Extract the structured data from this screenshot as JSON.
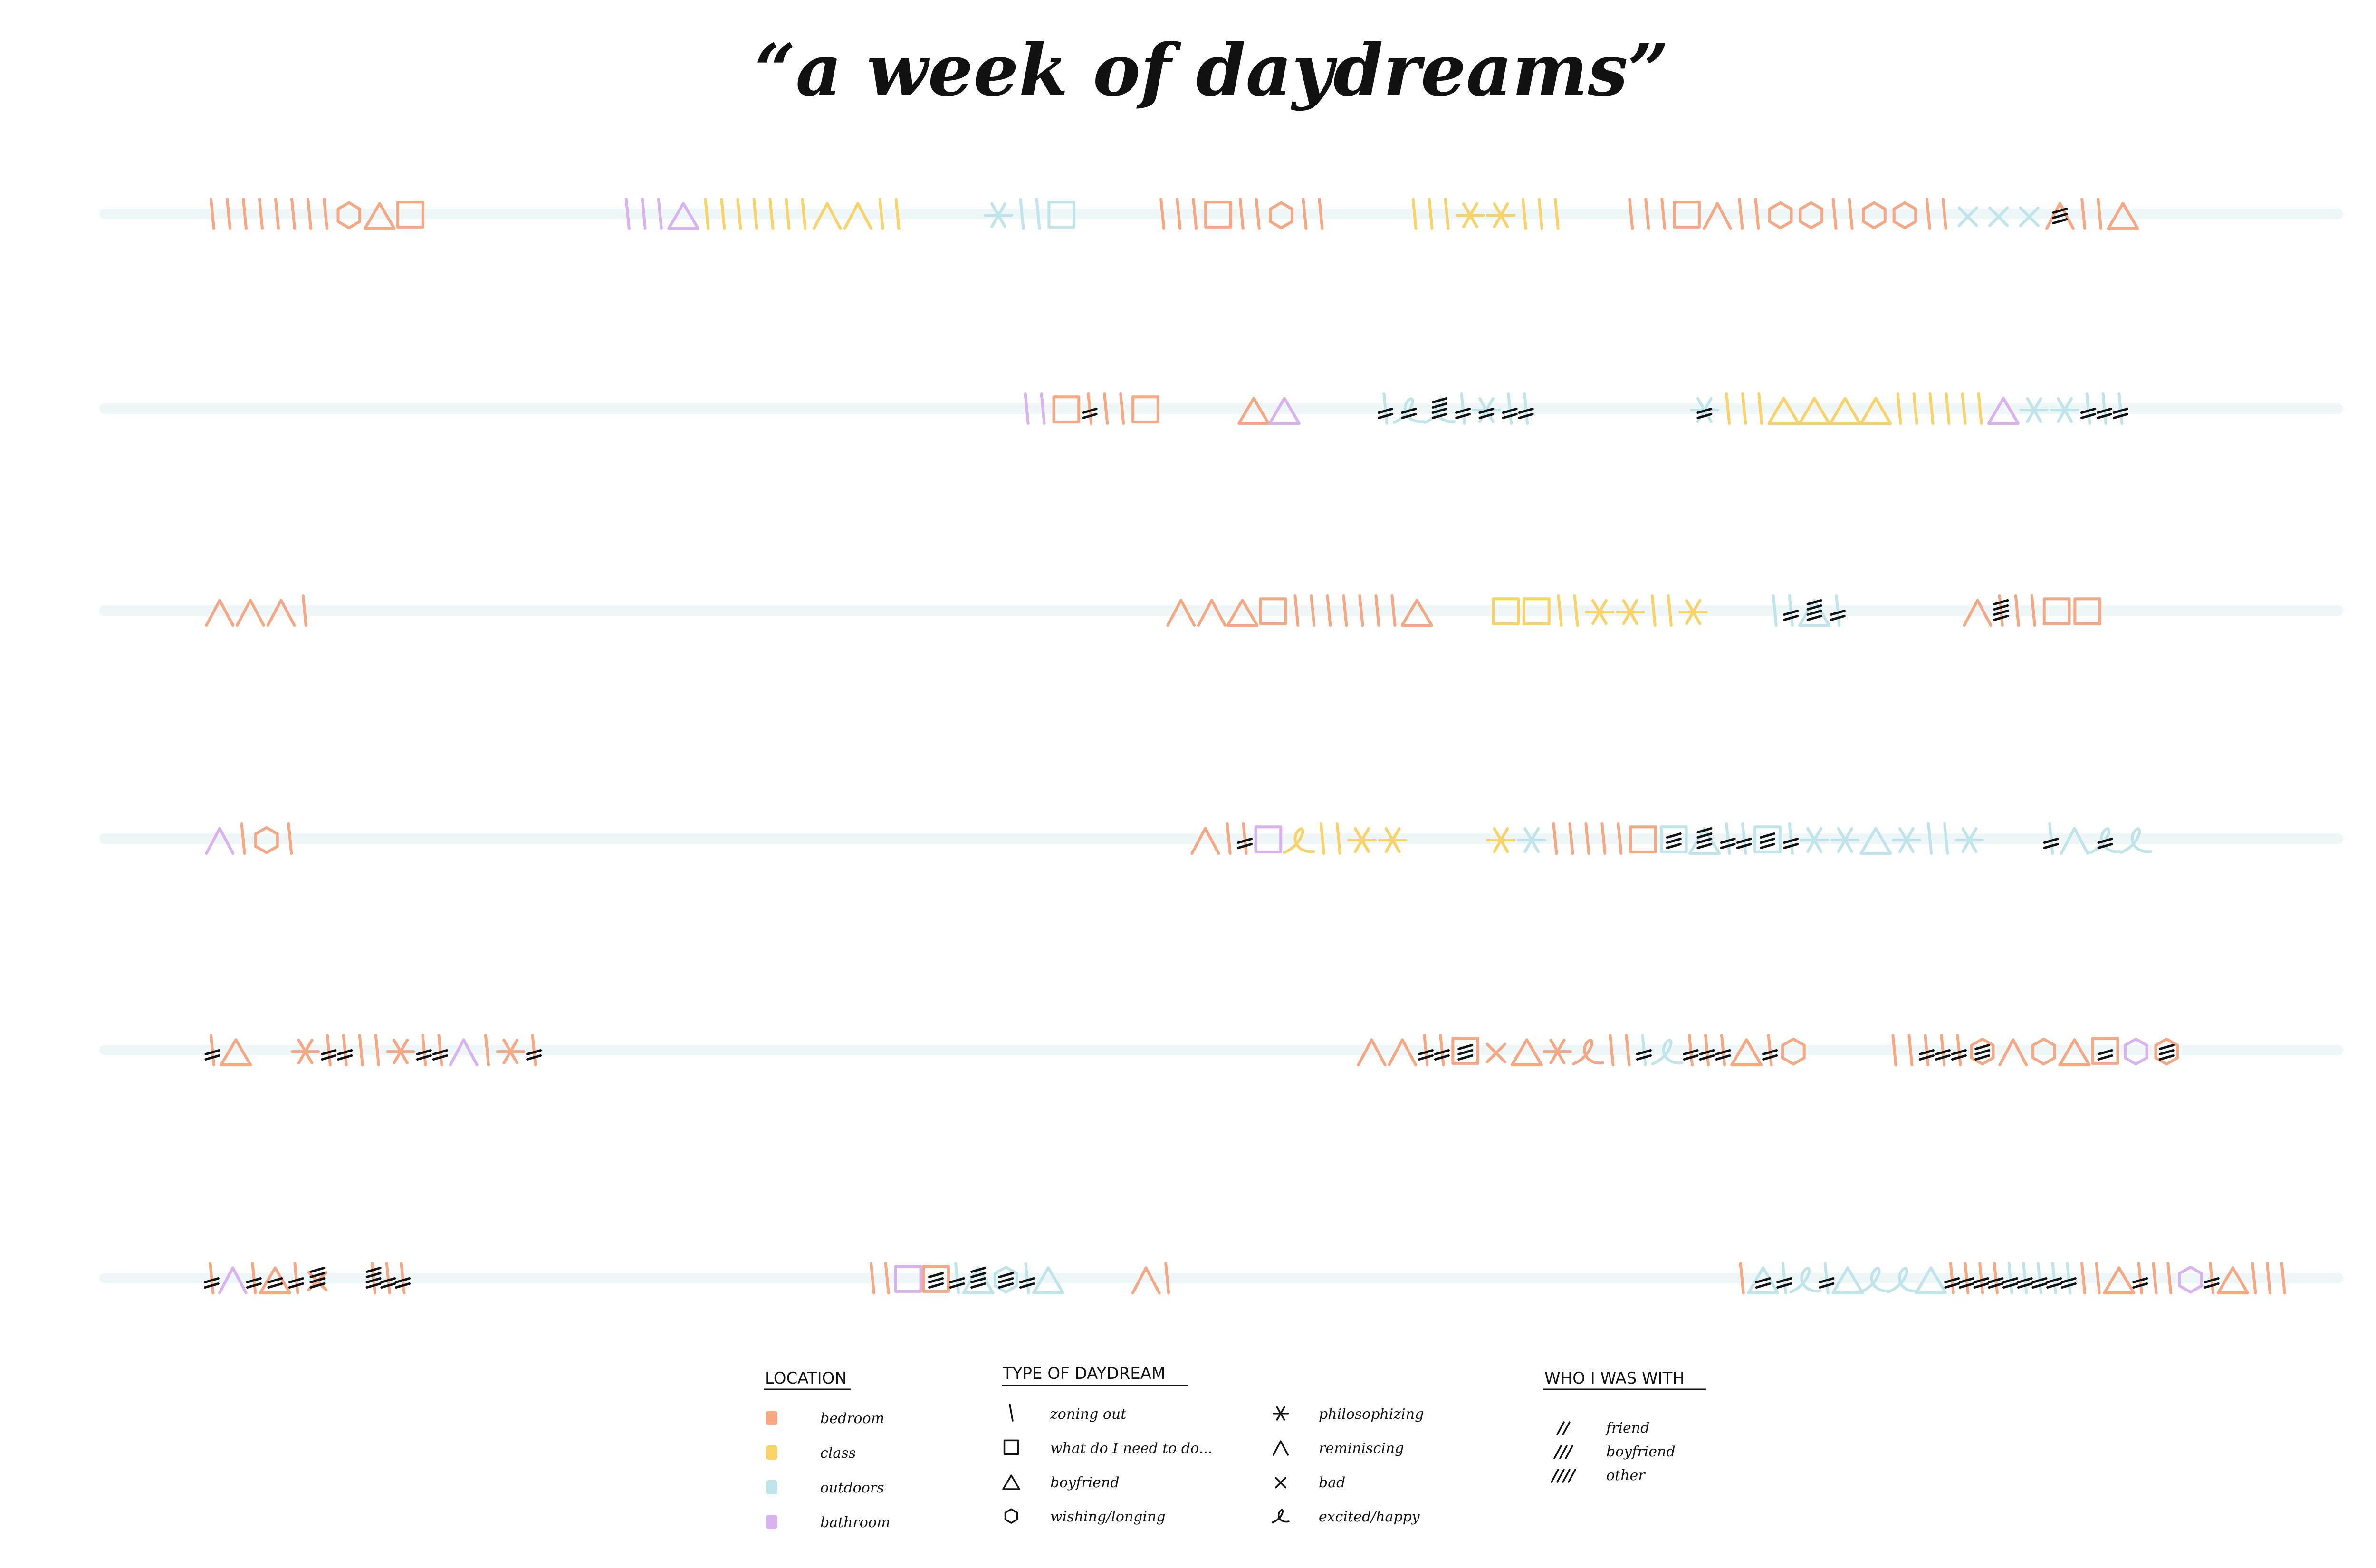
{
  "title": "“a week of daydreams”",
  "colors": {
    "bedroom": "#f6a783",
    "class": "#f8d36a",
    "outdoors": "#bfe5ea",
    "bathroom": "#d9b2f0",
    "ink": "#111111",
    "track": "#eef6f8"
  },
  "days": [
    {
      "row": 1,
      "marks": [
        {
          "t": "zone",
          "c": "bedroom",
          "n": 8
        },
        {
          "t": "wish",
          "c": "bedroom"
        },
        {
          "t": "boy",
          "c": "bedroom"
        },
        {
          "t": "todo",
          "c": "bedroom"
        },
        {
          "gap": 1
        },
        {
          "t": "zone",
          "c": "bathroom",
          "n": 3
        },
        {
          "t": "boy",
          "c": "bathroom"
        },
        {
          "t": "zone",
          "c": "class",
          "n": 7
        },
        {
          "t": "rem",
          "c": "class",
          "n": 2
        },
        {
          "t": "zone",
          "c": "class",
          "n": 2
        },
        {
          "gap": 0.4
        },
        {
          "t": "phil",
          "c": "outdoors"
        },
        {
          "t": "zone",
          "c": "outdoors",
          "n": 2
        },
        {
          "t": "todo",
          "c": "outdoors"
        },
        {
          "gap": 0.4
        },
        {
          "t": "zone",
          "c": "bedroom",
          "n": 3
        },
        {
          "t": "todo",
          "c": "bedroom"
        },
        {
          "t": "zone",
          "c": "bedroom",
          "n": 2
        },
        {
          "t": "wish",
          "c": "bedroom"
        },
        {
          "t": "zone",
          "c": "bedroom",
          "n": 2
        },
        {
          "gap": 0.4
        },
        {
          "t": "zone",
          "c": "class",
          "n": 3
        },
        {
          "t": "phil",
          "c": "class",
          "n": 2
        },
        {
          "t": "zone",
          "c": "class",
          "n": 3
        },
        {
          "gap": 0.3
        },
        {
          "t": "zone",
          "c": "bedroom",
          "n": 3
        },
        {
          "t": "todo",
          "c": "bedroom"
        },
        {
          "t": "rem",
          "c": "bedroom"
        },
        {
          "t": "zone",
          "c": "bedroom",
          "n": 2
        },
        {
          "t": "wish",
          "c": "bedroom",
          "n": 2
        },
        {
          "t": "zone",
          "c": "bedroom",
          "n": 2
        },
        {
          "t": "wish",
          "c": "bedroom",
          "n": 2
        },
        {
          "t": "zone",
          "c": "bedroom",
          "n": 2
        },
        {
          "t": "bad",
          "c": "outdoors",
          "n": 3
        },
        {
          "t": "rem",
          "c": "bedroom",
          "w": "boyfriend"
        },
        {
          "t": "zone",
          "c": "bedroom",
          "n": 2
        },
        {
          "t": "boy",
          "c": "bedroom"
        }
      ]
    },
    {
      "row": 2,
      "marks": [
        {
          "gap": 4.2
        },
        {
          "t": "zone",
          "c": "bathroom",
          "n": 2
        },
        {
          "t": "todo",
          "c": "bedroom"
        },
        {
          "t": "zone",
          "c": "bedroom",
          "w": "friend"
        },
        {
          "t": "zone",
          "c": "bedroom",
          "n": 2
        },
        {
          "t": "todo",
          "c": "bedroom"
        },
        {
          "gap": 0.4
        },
        {
          "t": "boy",
          "c": "bedroom"
        },
        {
          "t": "boy",
          "c": "bathroom"
        },
        {
          "gap": 0.4
        },
        {
          "t": "zone",
          "c": "outdoors",
          "w": "friend"
        },
        {
          "t": "happy",
          "c": "outdoors",
          "w": "friend"
        },
        {
          "t": "happy",
          "c": "outdoors",
          "w": "other"
        },
        {
          "t": "zone",
          "c": "outdoors",
          "w": "friend"
        },
        {
          "t": "phil",
          "c": "outdoors",
          "w": "friend"
        },
        {
          "t": "zone",
          "c": "outdoors",
          "w": "friend"
        },
        {
          "t": "zone",
          "c": "outdoors",
          "w": "friend"
        },
        {
          "gap": 0.8
        },
        {
          "t": "phil",
          "c": "outdoors",
          "w": "friend"
        },
        {
          "t": "zone",
          "c": "class",
          "n": 3
        },
        {
          "t": "boy",
          "c": "class",
          "n": 4
        },
        {
          "t": "zone",
          "c": "class",
          "n": 6
        },
        {
          "t": "boy",
          "c": "bathroom"
        },
        {
          "t": "phil",
          "c": "outdoors",
          "n": 2
        },
        {
          "t": "zone",
          "c": "outdoors",
          "w": "friend",
          "n": 3
        }
      ]
    },
    {
      "row": 3,
      "marks": [
        {
          "t": "rem",
          "c": "bedroom",
          "n": 3
        },
        {
          "t": "zone",
          "c": "bedroom"
        },
        {
          "gap": 4.4
        },
        {
          "t": "rem",
          "c": "bedroom",
          "n": 2
        },
        {
          "t": "boy",
          "c": "bedroom"
        },
        {
          "t": "todo",
          "c": "bedroom"
        },
        {
          "t": "zone",
          "c": "bedroom",
          "n": 7
        },
        {
          "t": "boy",
          "c": "bedroom"
        },
        {
          "gap": 0.3
        },
        {
          "t": "todo",
          "c": "class",
          "n": 2
        },
        {
          "t": "zone",
          "c": "class",
          "n": 2
        },
        {
          "t": "phil",
          "c": "class",
          "n": 2
        },
        {
          "t": "zone",
          "c": "class",
          "n": 2
        },
        {
          "t": "phil",
          "c": "class"
        },
        {
          "gap": 0.3
        },
        {
          "t": "zone",
          "c": "outdoors"
        },
        {
          "t": "zone",
          "c": "outdoors",
          "w": "friend"
        },
        {
          "t": "boy",
          "c": "outdoors",
          "w": "other"
        },
        {
          "t": "zone",
          "c": "outdoors",
          "w": "friend"
        },
        {
          "gap": 0.6
        },
        {
          "t": "rem",
          "c": "bedroom"
        },
        {
          "t": "zone",
          "c": "bedroom",
          "w": "other"
        },
        {
          "t": "zone",
          "c": "bedroom",
          "n": 2
        },
        {
          "t": "todo",
          "c": "bedroom",
          "n": 2
        }
      ]
    },
    {
      "row": 4,
      "marks": [
        {
          "t": "rem",
          "c": "bathroom"
        },
        {
          "t": "zone",
          "c": "bedroom"
        },
        {
          "t": "wish",
          "c": "bedroom"
        },
        {
          "t": "zone",
          "c": "bedroom"
        },
        {
          "gap": 4.6
        },
        {
          "t": "rem",
          "c": "bedroom"
        },
        {
          "t": "zone",
          "c": "bedroom"
        },
        {
          "t": "zone",
          "c": "bedroom",
          "w": "friend"
        },
        {
          "t": "todo",
          "c": "bathroom"
        },
        {
          "t": "happy",
          "c": "class"
        },
        {
          "t": "zone",
          "c": "class",
          "n": 2
        },
        {
          "t": "phil",
          "c": "class",
          "n": 2
        },
        {
          "gap": 0.4
        },
        {
          "t": "phil",
          "c": "class"
        },
        {
          "t": "phil",
          "c": "outdoors"
        },
        {
          "t": "zone",
          "c": "bedroom",
          "n": 5
        },
        {
          "t": "todo",
          "c": "bedroom"
        },
        {
          "t": "todo",
          "c": "outdoors",
          "w": "boyfriend"
        },
        {
          "t": "boy",
          "c": "outdoors",
          "w": "other"
        },
        {
          "t": "zone",
          "c": "outdoors",
          "w": "friend",
          "n": 2
        },
        {
          "t": "todo",
          "c": "outdoors",
          "w": "boyfriend"
        },
        {
          "t": "zone",
          "c": "outdoors",
          "w": "friend"
        },
        {
          "t": "phil",
          "c": "outdoors",
          "n": 2
        },
        {
          "t": "boy",
          "c": "outdoors"
        },
        {
          "t": "phil",
          "c": "outdoors"
        },
        {
          "t": "zone",
          "c": "outdoors",
          "n": 2
        },
        {
          "t": "phil",
          "c": "outdoors"
        },
        {
          "gap": 0.3
        },
        {
          "t": "zone",
          "c": "outdoors",
          "w": "friend"
        },
        {
          "t": "rem",
          "c": "outdoors"
        },
        {
          "t": "happy",
          "c": "outdoors",
          "w": "friend"
        },
        {
          "t": "happy",
          "c": "outdoors"
        }
      ]
    },
    {
      "row": 5,
      "marks": [
        {
          "t": "zone",
          "c": "bedroom",
          "w": "friend"
        },
        {
          "t": "boy",
          "c": "bedroom"
        },
        {
          "gap": 0.2
        },
        {
          "t": "phil",
          "c": "bedroom"
        },
        {
          "t": "zone",
          "c": "bedroom",
          "w": "friend",
          "n": 2
        },
        {
          "t": "zone",
          "c": "bedroom",
          "n": 2
        },
        {
          "t": "phil",
          "c": "bedroom"
        },
        {
          "t": "zone",
          "c": "bedroom",
          "w": "friend",
          "n": 2
        },
        {
          "t": "rem",
          "c": "bathroom"
        },
        {
          "t": "zone",
          "c": "bedroom"
        },
        {
          "t": "phil",
          "c": "bedroom"
        },
        {
          "t": "zone",
          "c": "bedroom",
          "w": "friend"
        },
        {
          "gap": 4.2
        },
        {
          "t": "rem",
          "c": "bedroom",
          "n": 2
        },
        {
          "t": "zone",
          "c": "bedroom",
          "w": "friend",
          "n": 2
        },
        {
          "t": "todo",
          "c": "bedroom",
          "w": "boyfriend"
        },
        {
          "t": "bad",
          "c": "bedroom"
        },
        {
          "t": "boy",
          "c": "bedroom"
        },
        {
          "t": "phil",
          "c": "bedroom"
        },
        {
          "t": "happy",
          "c": "bedroom"
        },
        {
          "t": "zone",
          "c": "bedroom",
          "n": 2
        },
        {
          "t": "zone",
          "c": "outdoors",
          "w": "friend"
        },
        {
          "t": "happy",
          "c": "outdoors"
        },
        {
          "t": "zone",
          "c": "bedroom",
          "w": "friend",
          "n": 3
        },
        {
          "t": "boy",
          "c": "bedroom"
        },
        {
          "t": "zone",
          "c": "bedroom",
          "w": "friend"
        },
        {
          "t": "wish",
          "c": "bedroom"
        },
        {
          "gap": 0.4
        },
        {
          "t": "zone",
          "c": "bedroom",
          "n": 2
        },
        {
          "t": "zone",
          "c": "bedroom",
          "w": "friend",
          "n": 3
        },
        {
          "t": "wish",
          "c": "bedroom",
          "w": "boyfriend"
        },
        {
          "t": "rem",
          "c": "bedroom"
        },
        {
          "t": "wish",
          "c": "bedroom"
        },
        {
          "t": "boy",
          "c": "bedroom"
        },
        {
          "t": "todo",
          "c": "bedroom",
          "w": "friend"
        },
        {
          "t": "wish",
          "c": "bathroom"
        },
        {
          "t": "wish",
          "c": "bedroom",
          "w": "boyfriend"
        }
      ]
    },
    {
      "row": 6,
      "marks": [
        {
          "t": "zone",
          "c": "bedroom",
          "w": "friend"
        },
        {
          "t": "rem",
          "c": "bathroom"
        },
        {
          "t": "zone",
          "c": "bedroom",
          "w": "friend"
        },
        {
          "t": "boy",
          "c": "bedroom",
          "w": "friend"
        },
        {
          "t": "zone",
          "c": "bedroom",
          "w": "friend"
        },
        {
          "t": "bad",
          "c": "bedroom",
          "w": "other"
        },
        {
          "gap": 0.2
        },
        {
          "t": "zone",
          "c": "bedroom",
          "w": "other"
        },
        {
          "t": "zone",
          "c": "bedroom",
          "w": "friend",
          "n": 2
        },
        {
          "gap": 2.6
        },
        {
          "t": "zone",
          "c": "bedroom",
          "n": 2
        },
        {
          "t": "todo",
          "c": "bathroom"
        },
        {
          "t": "todo",
          "c": "bedroom",
          "w": "boyfriend"
        },
        {
          "t": "zone",
          "c": "outdoors",
          "w": "friend"
        },
        {
          "t": "boy",
          "c": "outdoors",
          "w": "other"
        },
        {
          "t": "wish",
          "c": "outdoors",
          "w": "boyfriend"
        },
        {
          "t": "zone",
          "c": "outdoors",
          "w": "friend"
        },
        {
          "t": "boy",
          "c": "outdoors"
        },
        {
          "gap": 0.4
        },
        {
          "t": "rem",
          "c": "bedroom"
        },
        {
          "t": "zone",
          "c": "bedroom"
        },
        {
          "gap": 3.2
        },
        {
          "t": "zone",
          "c": "bedroom"
        },
        {
          "t": "boy",
          "c": "outdoors",
          "w": "friend"
        },
        {
          "t": "zone",
          "c": "outdoors",
          "w": "friend"
        },
        {
          "t": "happy",
          "c": "outdoors"
        },
        {
          "t": "zone",
          "c": "outdoors",
          "w": "friend"
        },
        {
          "t": "boy",
          "c": "outdoors"
        },
        {
          "t": "happy",
          "c": "outdoors",
          "n": 2
        },
        {
          "t": "boy",
          "c": "outdoors"
        },
        {
          "t": "zone",
          "c": "bedroom",
          "w": "friend",
          "n": 4
        },
        {
          "t": "zone",
          "c": "outdoors",
          "w": "friend",
          "n": 3
        },
        {
          "t": "zone",
          "c": "outdoors",
          "w": "friend",
          "n": 2
        },
        {
          "t": "zone",
          "c": "bedroom",
          "n": 2
        },
        {
          "t": "boy",
          "c": "bedroom"
        },
        {
          "t": "zone",
          "c": "bedroom",
          "w": "friend"
        },
        {
          "t": "zone",
          "c": "bedroom",
          "n": 2
        },
        {
          "t": "wish",
          "c": "bathroom"
        },
        {
          "t": "zone",
          "c": "bedroom",
          "w": "friend"
        },
        {
          "t": "boy",
          "c": "bedroom"
        },
        {
          "t": "zone",
          "c": "bedroom",
          "n": 3
        }
      ]
    }
  ],
  "legend": {
    "location": {
      "heading": "LOCATION",
      "items": [
        {
          "key": "bedroom",
          "label": "bedroom"
        },
        {
          "key": "class",
          "label": "class"
        },
        {
          "key": "outdoors",
          "label": "outdoors"
        },
        {
          "key": "bathroom",
          "label": "bathroom"
        }
      ]
    },
    "type": {
      "heading": "TYPE OF DAYDREAM",
      "items": [
        {
          "sym": "zone",
          "label": "zoning out"
        },
        {
          "sym": "todo",
          "label": "what do I need to do..."
        },
        {
          "sym": "boy",
          "label": "boyfriend"
        },
        {
          "sym": "wish",
          "label": "wishing/longing"
        },
        {
          "sym": "phil",
          "label": "philosophizing"
        },
        {
          "sym": "rem",
          "label": "reminiscing"
        },
        {
          "sym": "bad",
          "label": "bad"
        },
        {
          "sym": "happy",
          "label": "excited/happy"
        }
      ]
    },
    "who": {
      "heading": "WHO I WAS WITH",
      "items": [
        {
          "sym": "//",
          "label": "friend"
        },
        {
          "sym": "///",
          "label": "boyfriend"
        },
        {
          "sym": "////",
          "label": "other"
        }
      ]
    }
  }
}
